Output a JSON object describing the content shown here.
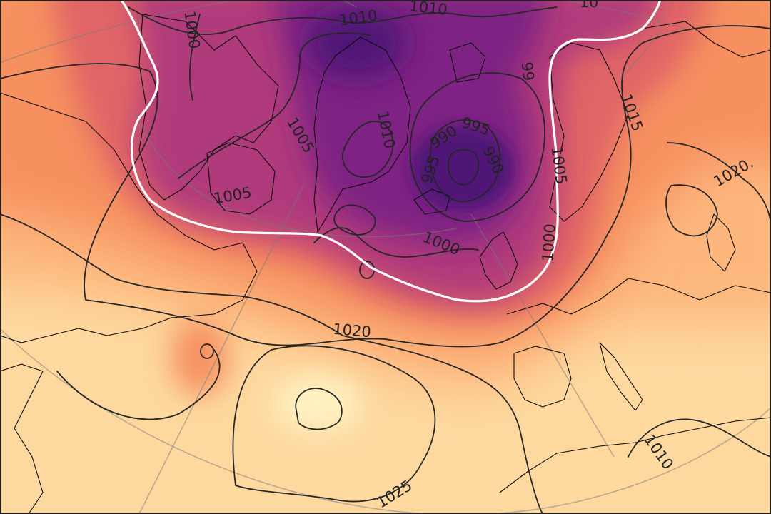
{
  "map": {
    "colors": {
      "low_core": "#4f1677",
      "low": "#7e2283",
      "mid_low": "#b03a7b",
      "mid": "#e06566",
      "mid_high": "#f6905e",
      "high": "#fdb77d",
      "very_high": "#fdd9a0",
      "peak": "#fff2c2",
      "isobar": "#262626",
      "highlight": "#ffffff",
      "coastline": "#0b0b0b"
    },
    "contour_labels": [
      {
        "id": "1010-top-left",
        "text": "1010"
      },
      {
        "id": "1010-top-right",
        "text": "1010"
      },
      {
        "id": "1010-top-far",
        "text": "10"
      },
      {
        "id": "1000-left",
        "text": "1000"
      },
      {
        "id": "1005-greenland-west",
        "text": "1005"
      },
      {
        "id": "1005-baffin",
        "text": "1005"
      },
      {
        "id": "1010-greenland",
        "text": "1010"
      },
      {
        "id": "995-low",
        "text": "995"
      },
      {
        "id": "990-low-left",
        "text": "990"
      },
      {
        "id": "990-low-right",
        "text": "990"
      },
      {
        "id": "995-low-left",
        "text": "995"
      },
      {
        "id": "995-norway",
        "text": "99"
      },
      {
        "id": "1000-north-atlantic",
        "text": "1000"
      },
      {
        "id": "1005-scandinavia",
        "text": "1005"
      },
      {
        "id": "1000-scandinavia",
        "text": "1000"
      },
      {
        "id": "1015-east",
        "text": "1015"
      },
      {
        "id": "1020-east",
        "text": "1020."
      },
      {
        "id": "1020-atlantic",
        "text": "1020"
      },
      {
        "id": "1025-atlantic",
        "text": "1025"
      },
      {
        "id": "1010-mediterranean",
        "text": "1010"
      }
    ]
  }
}
